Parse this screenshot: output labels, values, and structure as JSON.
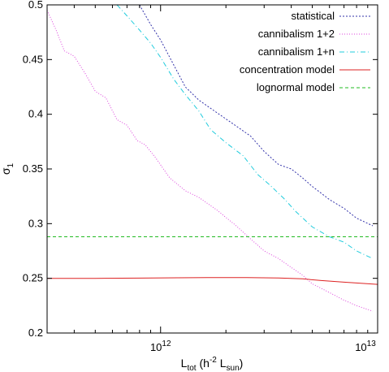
{
  "chart_data": {
    "type": "line",
    "xlabel": {
      "main": "L",
      "sub": "tot",
      "rest": " (h",
      "sup": "-2",
      "rest2": " L",
      "sub2": "sun",
      "close": ")"
    },
    "ylabel": {
      "main": "σ",
      "sub": "1"
    },
    "xscale": "log",
    "xlim": [
      300000000000.0,
      10000000000000.0
    ],
    "ylim": [
      0.2,
      0.5
    ],
    "x_tick_labels": [
      {
        "value": 1000000000000.0,
        "base": "10",
        "exp": "12"
      },
      {
        "value": 10000000000000.0,
        "base": "10",
        "exp": "13"
      }
    ],
    "y_ticks": [
      0.2,
      0.25,
      0.3,
      0.35,
      0.4,
      0.45,
      0.5
    ],
    "y_tick_labels": [
      "0.2",
      "0.25",
      "0.3",
      "0.35",
      "0.4",
      "0.45",
      "0.5"
    ],
    "legend_position": "top-right",
    "series": [
      {
        "name": "statistical",
        "color": "#3333aa",
        "dash": "2,2",
        "points": [
          [
            800000000000.0,
            0.5
          ],
          [
            900000000000.0,
            0.482
          ],
          [
            1000000000000.0,
            0.468
          ],
          [
            1150000000000.0,
            0.445
          ],
          [
            1300000000000.0,
            0.425
          ],
          [
            1500000000000.0,
            0.413
          ],
          [
            1800000000000.0,
            0.402
          ],
          [
            2200000000000.0,
            0.39
          ],
          [
            2600000000000.0,
            0.38
          ],
          [
            3000000000000.0,
            0.366
          ],
          [
            3500000000000.0,
            0.354
          ],
          [
            4000000000000.0,
            0.35
          ],
          [
            4500000000000.0,
            0.342
          ],
          [
            5000000000000.0,
            0.334
          ],
          [
            6000000000000.0,
            0.322
          ],
          [
            7000000000000.0,
            0.314
          ],
          [
            8000000000000.0,
            0.305
          ],
          [
            9500000000000.0,
            0.298
          ]
        ]
      },
      {
        "name": "cannibalism 1+2",
        "color": "#dd44dd",
        "dash": "1,2",
        "points": [
          [
            300000000000.0,
            0.495
          ],
          [
            330000000000.0,
            0.477
          ],
          [
            360000000000.0,
            0.458
          ],
          [
            400000000000.0,
            0.453
          ],
          [
            450000000000.0,
            0.437
          ],
          [
            500000000000.0,
            0.421
          ],
          [
            560000000000.0,
            0.415
          ],
          [
            630000000000.0,
            0.395
          ],
          [
            700000000000.0,
            0.39
          ],
          [
            780000000000.0,
            0.376
          ],
          [
            850000000000.0,
            0.372
          ],
          [
            950000000000.0,
            0.36
          ],
          [
            1100000000000.0,
            0.342
          ],
          [
            1300000000000.0,
            0.33
          ],
          [
            1500000000000.0,
            0.324
          ],
          [
            1800000000000.0,
            0.313
          ],
          [
            2200000000000.0,
            0.299
          ],
          [
            2600000000000.0,
            0.286
          ],
          [
            3000000000000.0,
            0.275
          ],
          [
            3500000000000.0,
            0.268
          ],
          [
            4000000000000.0,
            0.26
          ],
          [
            4500000000000.0,
            0.253
          ],
          [
            5000000000000.0,
            0.245
          ],
          [
            6000000000000.0,
            0.237
          ],
          [
            7000000000000.0,
            0.23
          ],
          [
            8000000000000.0,
            0.225
          ],
          [
            9500000000000.0,
            0.22
          ]
        ]
      },
      {
        "name": "cannibalism 1+n",
        "color": "#22ccdd",
        "dash": "6,3,1,3",
        "points": [
          [
            630000000000.0,
            0.5
          ],
          [
            700000000000.0,
            0.49
          ],
          [
            800000000000.0,
            0.477
          ],
          [
            900000000000.0,
            0.465
          ],
          [
            1000000000000.0,
            0.452
          ],
          [
            1150000000000.0,
            0.432
          ],
          [
            1300000000000.0,
            0.418
          ],
          [
            1500000000000.0,
            0.403
          ],
          [
            1700000000000.0,
            0.386
          ],
          [
            2000000000000.0,
            0.374
          ],
          [
            2400000000000.0,
            0.362
          ],
          [
            2800000000000.0,
            0.345
          ],
          [
            3200000000000.0,
            0.335
          ],
          [
            3700000000000.0,
            0.323
          ],
          [
            4200000000000.0,
            0.311
          ],
          [
            5000000000000.0,
            0.297
          ],
          [
            6000000000000.0,
            0.288
          ],
          [
            7000000000000.0,
            0.283
          ],
          [
            8000000000000.0,
            0.275
          ],
          [
            9500000000000.0,
            0.268
          ]
        ]
      },
      {
        "name": "concentration model",
        "color": "#dd2222",
        "dash": "",
        "points": [
          [
            300000000000.0,
            0.25
          ],
          [
            500000000000.0,
            0.25
          ],
          [
            800000000000.0,
            0.2502
          ],
          [
            1200000000000.0,
            0.2505
          ],
          [
            1800000000000.0,
            0.2507
          ],
          [
            2500000000000.0,
            0.2507
          ],
          [
            3500000000000.0,
            0.2503
          ],
          [
            4500000000000.0,
            0.2495
          ],
          [
            5500000000000.0,
            0.248
          ],
          [
            7000000000000.0,
            0.2465
          ],
          [
            10000000000000.0,
            0.2445
          ]
        ]
      },
      {
        "name": "lognormal model",
        "color": "#22bb22",
        "dash": "4,3",
        "points": [
          [
            300000000000.0,
            0.288
          ],
          [
            10000000000000.0,
            0.288
          ]
        ]
      }
    ]
  }
}
